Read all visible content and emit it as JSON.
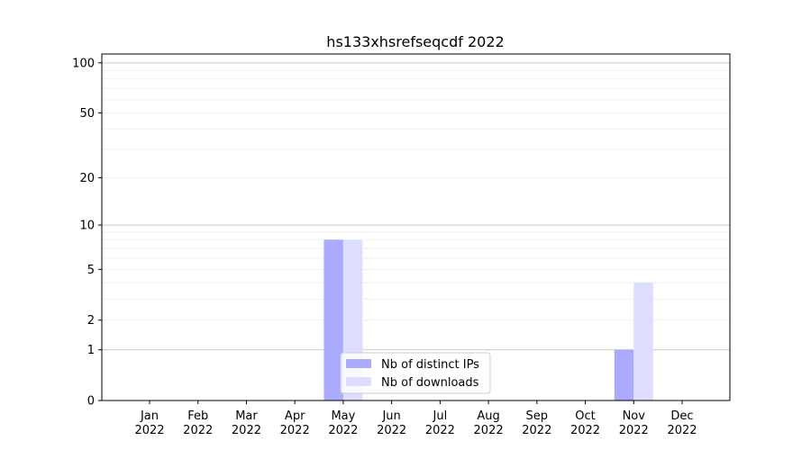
{
  "chart_data": {
    "type": "bar",
    "title": "hs133xhsrefseqcdf 2022",
    "xlabel": "",
    "ylabel": "",
    "yscale": "log(1+y)",
    "ylim": [
      0,
      113
    ],
    "yticks": [
      0,
      1,
      2,
      5,
      10,
      20,
      50,
      100
    ],
    "grid": true,
    "legend_position": "lower-center",
    "categories": [
      "Jan\n2022",
      "Feb\n2022",
      "Mar\n2022",
      "Apr\n2022",
      "May\n2022",
      "Jun\n2022",
      "Jul\n2022",
      "Aug\n2022",
      "Sep\n2022",
      "Oct\n2022",
      "Nov\n2022",
      "Dec\n2022"
    ],
    "series": [
      {
        "name": "Nb of distinct IPs",
        "color": "#aaaaff",
        "values": [
          0,
          0,
          0,
          0,
          8,
          0,
          0,
          0,
          0,
          0,
          1,
          0
        ]
      },
      {
        "name": "Nb of downloads",
        "color": "#ddddff",
        "values": [
          0,
          0,
          0,
          0,
          8,
          0,
          0,
          0,
          0,
          0,
          4,
          0
        ]
      }
    ]
  }
}
